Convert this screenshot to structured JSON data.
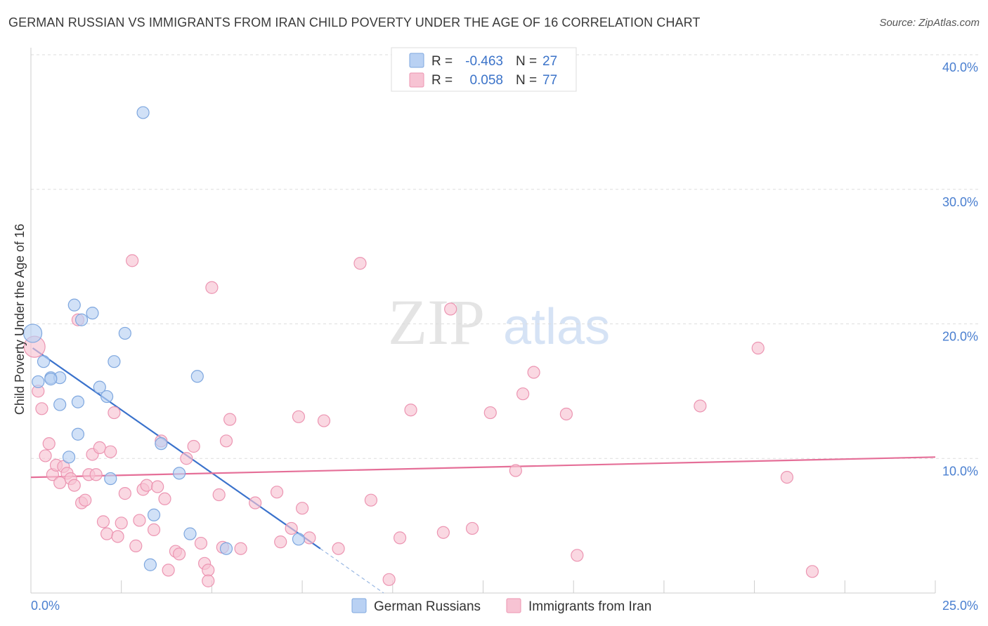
{
  "title": "GERMAN RUSSIAN VS IMMIGRANTS FROM IRAN CHILD POVERTY UNDER THE AGE OF 16 CORRELATION CHART",
  "source": "Source: ZipAtlas.com",
  "watermark": {
    "zip": "ZIP",
    "atlas": "atlas"
  },
  "colors": {
    "blue_fill": "#b9d1f3",
    "blue_stroke": "#7ea7df",
    "blue_line": "#3a72cc",
    "pink_fill": "#f7c3d3",
    "pink_stroke": "#ec95b2",
    "pink_line": "#e56f98",
    "tick_text": "#4a7fd0",
    "grid": "#dddddd"
  },
  "legend_top": [
    {
      "series": "German Russians",
      "r_label": "R =",
      "r_value": "-0.463",
      "n_label": "N =",
      "n_value": "27"
    },
    {
      "series": "Immigrants from Iran",
      "r_label": "R =",
      "r_value": "0.058",
      "n_label": "N =",
      "n_value": "77"
    }
  ],
  "chart_data": {
    "type": "scatter",
    "title": "GERMAN RUSSIAN VS IMMIGRANTS FROM IRAN CHILD POVERTY UNDER THE AGE OF 16 CORRELATION CHART",
    "xlabel": "",
    "ylabel": "Child Poverty Under the Age of 16",
    "xlim": [
      0,
      25
    ],
    "ylim": [
      0,
      40
    ],
    "x_tick_labels": [
      "0.0%",
      "25.0%"
    ],
    "y_tick_labels": [
      "10.0%",
      "20.0%",
      "30.0%",
      "40.0%"
    ],
    "y_ticks": [
      10,
      20,
      30,
      40
    ],
    "legend_position": "bottom",
    "series": [
      {
        "name": "German Russians",
        "points": [
          [
            0.05,
            19.3
          ],
          [
            0.35,
            17.2
          ],
          [
            0.2,
            15.7
          ],
          [
            0.55,
            16.0
          ],
          [
            0.8,
            16.0
          ],
          [
            0.55,
            15.9
          ],
          [
            0.8,
            14.0
          ],
          [
            1.2,
            21.4
          ],
          [
            1.4,
            20.3
          ],
          [
            1.7,
            20.8
          ],
          [
            1.3,
            14.2
          ],
          [
            1.9,
            15.3
          ],
          [
            2.1,
            14.6
          ],
          [
            2.3,
            17.2
          ],
          [
            2.6,
            19.3
          ],
          [
            1.05,
            10.1
          ],
          [
            1.3,
            11.8
          ],
          [
            2.2,
            8.5
          ],
          [
            3.1,
            35.7
          ],
          [
            3.4,
            5.8
          ],
          [
            3.6,
            11.1
          ],
          [
            4.1,
            8.9
          ],
          [
            4.4,
            4.4
          ],
          [
            4.6,
            16.1
          ],
          [
            3.3,
            2.1
          ],
          [
            5.4,
            3.3
          ],
          [
            7.4,
            4.0
          ]
        ]
      },
      {
        "name": "Immigrants from Iran",
        "points": [
          [
            0.1,
            18.3
          ],
          [
            0.2,
            15.0
          ],
          [
            0.3,
            13.7
          ],
          [
            0.4,
            10.2
          ],
          [
            0.5,
            11.1
          ],
          [
            0.6,
            8.8
          ],
          [
            0.7,
            9.5
          ],
          [
            0.8,
            8.2
          ],
          [
            0.9,
            9.4
          ],
          [
            1.0,
            8.9
          ],
          [
            1.1,
            8.5
          ],
          [
            1.2,
            8.0
          ],
          [
            1.3,
            20.3
          ],
          [
            1.4,
            6.7
          ],
          [
            1.5,
            6.9
          ],
          [
            1.6,
            8.8
          ],
          [
            1.7,
            10.3
          ],
          [
            1.8,
            8.8
          ],
          [
            1.9,
            10.8
          ],
          [
            2.0,
            5.3
          ],
          [
            2.1,
            4.4
          ],
          [
            2.2,
            10.5
          ],
          [
            2.3,
            13.4
          ],
          [
            2.4,
            4.2
          ],
          [
            2.5,
            5.2
          ],
          [
            2.6,
            7.4
          ],
          [
            2.8,
            24.7
          ],
          [
            2.9,
            3.5
          ],
          [
            3.0,
            5.4
          ],
          [
            3.1,
            7.7
          ],
          [
            3.2,
            8.0
          ],
          [
            3.4,
            4.7
          ],
          [
            3.5,
            7.9
          ],
          [
            3.6,
            11.3
          ],
          [
            3.7,
            7.0
          ],
          [
            3.8,
            1.7
          ],
          [
            4.0,
            3.1
          ],
          [
            4.1,
            2.9
          ],
          [
            4.3,
            10.0
          ],
          [
            4.5,
            10.9
          ],
          [
            4.7,
            3.7
          ],
          [
            4.8,
            2.2
          ],
          [
            4.9,
            1.7
          ],
          [
            5.0,
            22.7
          ],
          [
            5.2,
            7.3
          ],
          [
            5.3,
            3.4
          ],
          [
            5.4,
            11.3
          ],
          [
            5.5,
            12.9
          ],
          [
            5.8,
            3.3
          ],
          [
            6.2,
            6.7
          ],
          [
            6.8,
            7.5
          ],
          [
            6.9,
            3.8
          ],
          [
            7.2,
            4.8
          ],
          [
            7.4,
            13.1
          ],
          [
            7.5,
            6.3
          ],
          [
            7.7,
            4.1
          ],
          [
            8.1,
            12.8
          ],
          [
            8.5,
            3.3
          ],
          [
            9.1,
            24.5
          ],
          [
            9.4,
            6.9
          ],
          [
            9.9,
            1.0
          ],
          [
            10.2,
            4.1
          ],
          [
            10.5,
            13.6
          ],
          [
            11.4,
            4.5
          ],
          [
            11.6,
            21.1
          ],
          [
            12.2,
            4.8
          ],
          [
            12.7,
            13.4
          ],
          [
            13.4,
            9.1
          ],
          [
            13.6,
            14.8
          ],
          [
            13.9,
            16.4
          ],
          [
            14.8,
            13.3
          ],
          [
            15.1,
            2.8
          ],
          [
            18.5,
            13.9
          ],
          [
            20.1,
            18.2
          ],
          [
            20.9,
            8.6
          ],
          [
            21.6,
            1.6
          ],
          [
            4.9,
            0.9
          ]
        ]
      }
    ],
    "trend_lines": [
      {
        "series": "German Russians",
        "x": [
          0.05,
          8.0
        ],
        "y": [
          18.2,
          3.3
        ],
        "dashed_extension_to": [
          9.75,
          0.0
        ]
      },
      {
        "series": "Immigrants from Iran",
        "x": [
          0.0,
          25.0
        ],
        "y": [
          8.6,
          10.1
        ]
      }
    ]
  }
}
